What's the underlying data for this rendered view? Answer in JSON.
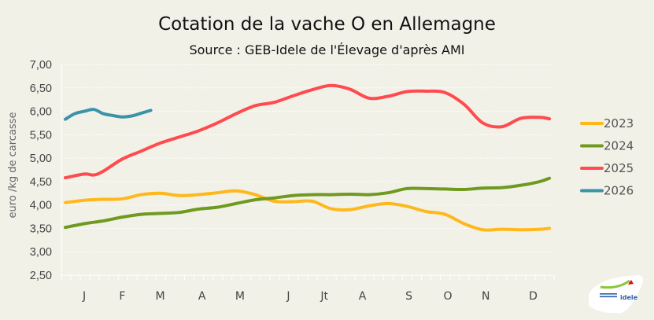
{
  "chart_data": {
    "type": "line",
    "title": "Cotation de la vache O en Allemagne",
    "subtitle": "Source : GEB-Idele de l'Élevage d'après AMI",
    "ylabel": "euro /kg de carcasse",
    "xlabel": "",
    "ylim": [
      2.5,
      7.0
    ],
    "yticks": [
      "2,50",
      "3,00",
      "3,50",
      "4,00",
      "4,50",
      "5,00",
      "5,50",
      "6,00",
      "6,50",
      "7,00"
    ],
    "x_unit": "week",
    "xlim": [
      1,
      52
    ],
    "month_labels": [
      {
        "label": "J",
        "week": 3
      },
      {
        "label": "F",
        "week": 7
      },
      {
        "label": "M",
        "week": 11
      },
      {
        "label": "A",
        "week": 15.4
      },
      {
        "label": "M",
        "week": 19.4
      },
      {
        "label": "J",
        "week": 24.5
      },
      {
        "label": "Jt",
        "week": 28.3
      },
      {
        "label": "A",
        "week": 32.3
      },
      {
        "label": "S",
        "week": 37.2
      },
      {
        "label": "O",
        "week": 41.3
      },
      {
        "label": "N",
        "week": 45.3
      },
      {
        "label": "D",
        "week": 50.3
      }
    ],
    "grid": true,
    "legend_position": "right",
    "series": [
      {
        "name": "2023",
        "color": "#ffb81c",
        "x": [
          1,
          3,
          5,
          7,
          9,
          11,
          13,
          15,
          17,
          19,
          21,
          23,
          25,
          27,
          29,
          31,
          33,
          35,
          37,
          39,
          41,
          43,
          45,
          47,
          49,
          51,
          52
        ],
        "y": [
          4.05,
          4.1,
          4.12,
          4.13,
          4.22,
          4.25,
          4.2,
          4.22,
          4.26,
          4.3,
          4.22,
          4.08,
          4.07,
          4.08,
          3.92,
          3.9,
          3.98,
          4.03,
          3.97,
          3.86,
          3.8,
          3.6,
          3.47,
          3.48,
          3.47,
          3.48,
          3.5
        ]
      },
      {
        "name": "2024",
        "color": "#6f9a1f",
        "x": [
          1,
          3,
          5,
          7,
          9,
          11,
          13,
          15,
          17,
          19,
          21,
          23,
          25,
          27,
          29,
          31,
          33,
          35,
          37,
          39,
          41,
          43,
          45,
          47,
          49,
          51,
          52
        ],
        "y": [
          3.52,
          3.6,
          3.66,
          3.74,
          3.8,
          3.82,
          3.84,
          3.91,
          3.95,
          4.03,
          4.11,
          4.15,
          4.2,
          4.22,
          4.22,
          4.23,
          4.22,
          4.26,
          4.35,
          4.35,
          4.34,
          4.33,
          4.36,
          4.37,
          4.42,
          4.5,
          4.57
        ]
      },
      {
        "name": "2025",
        "color": "#ff4b4f",
        "x": [
          1,
          3,
          4,
          5,
          7,
          9,
          11,
          13,
          15,
          17,
          19,
          21,
          23,
          25,
          27,
          29,
          31,
          33,
          35,
          37,
          39,
          41,
          43,
          45,
          47,
          49,
          51,
          52
        ],
        "y": [
          4.58,
          4.66,
          4.64,
          4.72,
          4.98,
          5.15,
          5.32,
          5.45,
          5.58,
          5.75,
          5.95,
          6.12,
          6.19,
          6.33,
          6.46,
          6.55,
          6.47,
          6.28,
          6.32,
          6.42,
          6.43,
          6.4,
          6.15,
          5.75,
          5.67,
          5.85,
          5.87,
          5.84
        ]
      },
      {
        "name": "2026",
        "color": "#3a93a8",
        "x": [
          1,
          2,
          3,
          4,
          5,
          6,
          7,
          8,
          9,
          10
        ],
        "y": [
          5.83,
          5.95,
          6.0,
          6.04,
          5.95,
          5.91,
          5.88,
          5.9,
          5.96,
          6.02
        ]
      }
    ]
  },
  "logo": {
    "text": "INSTITUT DE L'ÉLEVAGE idele"
  }
}
